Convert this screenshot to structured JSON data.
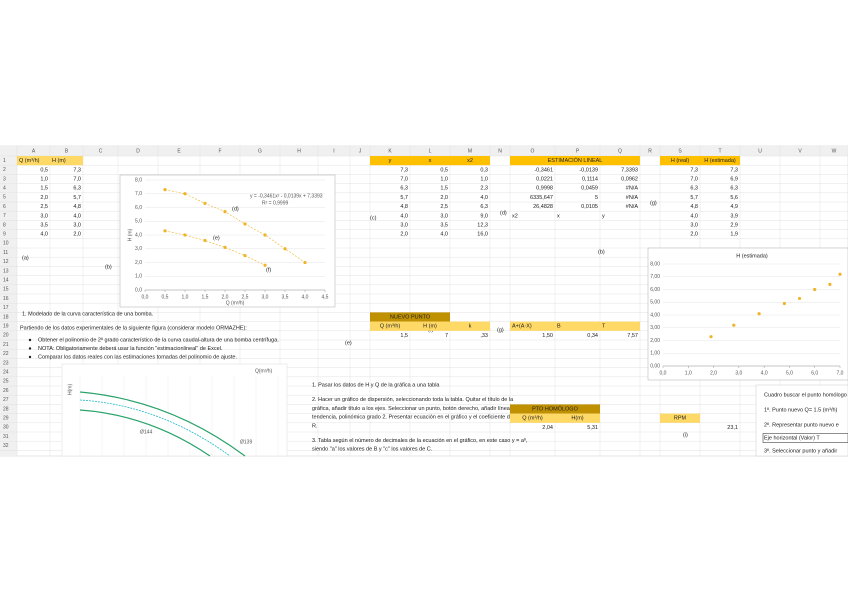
{
  "columns": [
    "A",
    "B",
    "C",
    "D",
    "E",
    "F",
    "G",
    "H",
    "I",
    "J",
    "K",
    "L",
    "M",
    "N",
    "O",
    "P",
    "Q",
    "R",
    "S",
    "T",
    "U",
    "V",
    "W"
  ],
  "rows": [
    1,
    2,
    3,
    4,
    5,
    6,
    7,
    8,
    9,
    10,
    11,
    12,
    13,
    14,
    15,
    16,
    17,
    18,
    19,
    20,
    21,
    22,
    23,
    24,
    25,
    26,
    27,
    28,
    29,
    30,
    31,
    32
  ],
  "data_table": {
    "headers": [
      "Q (m³/h)",
      "H (m)"
    ],
    "q": [
      "0,5",
      "1,0",
      "1,5",
      "2,0",
      "2,5",
      "3,0",
      "3,5",
      "4,0"
    ],
    "h": [
      "7,3",
      "7,0",
      "6,3",
      "5,7",
      "4,8",
      "4,0",
      "3,0",
      "2,0"
    ]
  },
  "regression_table": {
    "headers": [
      "y",
      "x",
      "x2"
    ],
    "y": [
      "7,3",
      "7,0",
      "6,3",
      "5,7",
      "4,8",
      "4,0",
      "3,0",
      "2,0"
    ],
    "x": [
      "0,5",
      "1,0",
      "1,5",
      "2,0",
      "2,5",
      "3,0",
      "3,5",
      "4,0"
    ],
    "x2": [
      "0,3",
      "1,0",
      "2,3",
      "4,0",
      "6,3",
      "9,0",
      "12,3",
      "16,0"
    ]
  },
  "linest": {
    "title": "ESTIMACIÓN LINEAL",
    "rows": [
      [
        "-0,3461",
        "-0,0139",
        "7,3393"
      ],
      [
        "0,0221",
        "0,1114",
        "0,0962"
      ],
      [
        "0,9998",
        "0,0459",
        "#N/A"
      ],
      [
        "6335,647",
        "5",
        "#N/A"
      ],
      [
        "26,4828",
        "0,0105",
        "#N/A"
      ]
    ],
    "coeffs": [
      "x2",
      "x",
      "y"
    ]
  },
  "estimate": {
    "headers": [
      "H (real)",
      "H (estimada)"
    ],
    "real": [
      "7,3",
      "7,0",
      "6,3",
      "5,7",
      "4,8",
      "4,0",
      "3,0",
      "2,0"
    ],
    "est": [
      "7,3",
      "6,9",
      "6,3",
      "5,6",
      "4,9",
      "3,9",
      "2,9",
      "1,9"
    ]
  },
  "labels": [
    "(a)",
    "(b)",
    "(c)",
    "(d)",
    "(b)",
    "(g)",
    "(e)",
    "(f)",
    "(g)",
    "(h)",
    "(i)"
  ],
  "instructions": {
    "heading": "1.      Modelado de la curva característica de una bomba.",
    "intro": "Partiendo de los datos experimentales de la siguiente figura (considerar modelo ORMAZHE):",
    "bullets": [
      "Obtener el polinomio de 2º grado característico de la curva caudal-altura de una bomba centrífuga.",
      "NOTA: Obligatoriamente deberá usar la función \"estimacionlineal\" de Excel.",
      "Comparar los datos reales con las estimaciones tomadas del polinomio de ajuste."
    ]
  },
  "steps": [
    "1.   Pasar los datos de H y Q de la gráfica a una tabla",
    "2.   Hacer un gráfico de dispersión, seleccionando toda la tabla. Quitar el título de la",
    "      gráfica, añadir título a los ejes. Seleccionar un punto, botón derecho, añadir línea de",
    "      tendencia, polinómica grado 2. Presentar ecuación en el gráfico y el coeficiente de",
    "      R.",
    "3.   Tabla según el número de decimales de la ecuación en el gráfico, en este caso y = aº,",
    "      siendo \"a\" los valores de B y \"c\" los valores de C."
  ],
  "nuevo_punto": {
    "title": "NUEVO PUNTO",
    "headers": [
      "Q (m³/h)",
      "H (m)"
    ],
    "values": [
      "1,5",
      "7"
    ],
    "k_header": "k",
    "k_value": ",33",
    "calc_headers": [
      "A+(A·X)",
      "B",
      "T"
    ],
    "calc_values": [
      "1,50",
      "0,34",
      "7,57"
    ]
  },
  "pto_homologo": {
    "title": "PTO HOMÓLOGO",
    "headers": [
      "Q (m³/h)",
      "H(m)",
      "RPM"
    ],
    "values": [
      "2,04",
      "5,31",
      "23,1"
    ]
  },
  "homologo_notes": [
    "Cuadro buscar el punto homólogo",
    "1º. Punto nuevo Q= 1.5 (m³/h)",
    "2º. Representar punto nuevo e",
    "Eje horizontal (Valor)  T",
    "3º. Seleccionar punto y añadir"
  ],
  "chart1": {
    "xlim": [
      0,
      4.5
    ],
    "ylim": [
      0,
      8
    ],
    "xticks": [
      {
        "value": 0,
        "label": "0,0"
      },
      {
        "value": 0.5,
        "label": "0,5"
      },
      {
        "value": 1,
        "label": "1,0"
      },
      {
        "value": 1.5,
        "label": "1,5"
      },
      {
        "value": 2,
        "label": "2,0"
      },
      {
        "value": 2.5,
        "label": "2,5"
      },
      {
        "value": 3,
        "label": "3,0"
      },
      {
        "value": 3.5,
        "label": "3,5"
      },
      {
        "value": 4,
        "label": "4,0"
      },
      {
        "value": 4.5,
        "label": "4,5"
      }
    ],
    "yticks": [
      {
        "value": 0,
        "label": "0,0"
      },
      {
        "value": 1,
        "label": "1,0"
      },
      {
        "value": 2,
        "label": "2,0"
      },
      {
        "value": 3,
        "label": "3,0"
      },
      {
        "value": 4,
        "label": "4,0"
      },
      {
        "value": 5,
        "label": "5,0"
      },
      {
        "value": 6,
        "label": "6,0"
      },
      {
        "value": 7,
        "label": "7,0"
      },
      {
        "value": 8,
        "label": "8,0"
      }
    ],
    "xlabel": "Q (m³/h)",
    "ylabel": "H (m)",
    "equation": "y = -0,3461x² - 0,0139x + 7,3393",
    "r2": "R² = 0,9999",
    "annotations": [
      "(d)",
      "(e)",
      "(f)"
    ],
    "series": [
      {
        "color": "#f0b429",
        "x": [
          0.5,
          1.0,
          1.5,
          2.0,
          2.5,
          3.0,
          3.5,
          4.0
        ],
        "values": [
          7.3,
          7.0,
          6.3,
          5.7,
          4.8,
          4.0,
          3.0,
          2.0
        ]
      },
      {
        "color": "#f0b429",
        "x": [
          0.5,
          1.0,
          1.5,
          2.0,
          2.5,
          3.0
        ],
        "values": [
          4.3,
          4.0,
          3.6,
          3.1,
          2.5,
          1.8
        ]
      }
    ]
  },
  "chart2": {
    "title": "H (estimada)",
    "xlim": [
      0,
      7
    ],
    "ylim": [
      0,
      8
    ],
    "xticks": [
      {
        "value": 0,
        "label": "0,0"
      },
      {
        "value": 1,
        "label": "1,0"
      },
      {
        "value": 2,
        "label": "2,0"
      },
      {
        "value": 3,
        "label": "3,0"
      },
      {
        "value": 4,
        "label": "4,0"
      },
      {
        "value": 5,
        "label": "5,0"
      },
      {
        "value": 6,
        "label": "6,0"
      },
      {
        "value": 7,
        "label": "7,0"
      }
    ],
    "yticks": [
      {
        "value": 0,
        "label": "0,00"
      },
      {
        "value": 1,
        "label": "1,00"
      },
      {
        "value": 2,
        "label": "2,00"
      },
      {
        "value": 3,
        "label": "3,00"
      },
      {
        "value": 4,
        "label": "4,00"
      },
      {
        "value": 5,
        "label": "5,00"
      },
      {
        "value": 6,
        "label": "6,00"
      },
      {
        "value": 7,
        "label": "7,00"
      },
      {
        "value": 8,
        "label": "8,00"
      }
    ],
    "color": "#f0b429",
    "x": [
      1.9,
      2.8,
      3.8,
      4.8,
      5.4,
      6.0,
      6.6,
      7.0
    ],
    "values": [
      2.3,
      3.2,
      4.1,
      4.9,
      5.3,
      6.0,
      6.4,
      7.2
    ]
  },
  "pump_chart": {
    "xlabel": "Q(m³/h)",
    "ylabel": "H(m)",
    "curve_labels": [
      "Ø144",
      "Ø139"
    ]
  }
}
